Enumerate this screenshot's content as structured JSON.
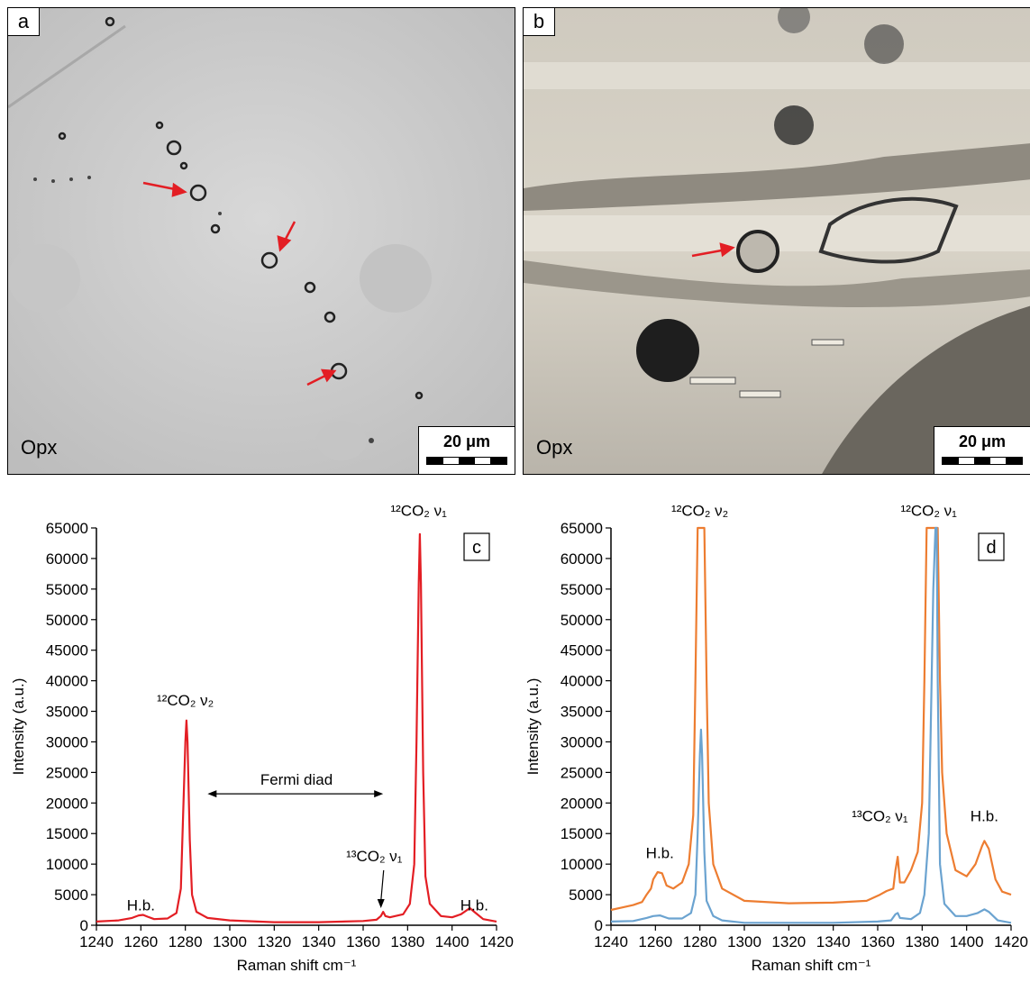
{
  "panel_a": {
    "label": "a",
    "mineral": "Opx",
    "scale": "20 μm"
  },
  "panel_b": {
    "label": "b",
    "mineral": "Opx",
    "scale": "20 μm"
  },
  "chart_data": [
    {
      "panel": "c",
      "type": "line",
      "xlabel": "Raman shift cm⁻¹",
      "ylabel": "Intensity  (a.u.)",
      "xlim": [
        1240,
        1420
      ],
      "ylim": [
        0,
        65000
      ],
      "xticks": [
        1240,
        1260,
        1280,
        1300,
        1320,
        1340,
        1360,
        1380,
        1400,
        1420
      ],
      "yticks": [
        0,
        5000,
        10000,
        15000,
        20000,
        25000,
        30000,
        35000,
        40000,
        45000,
        50000,
        55000,
        60000,
        65000
      ],
      "series": [
        {
          "color": "#e31e24",
          "points": [
            [
              1240,
              600
            ],
            [
              1250,
              800
            ],
            [
              1256,
              1200
            ],
            [
              1259,
              1600
            ],
            [
              1261,
              1700
            ],
            [
              1263,
              1400
            ],
            [
              1266,
              1000
            ],
            [
              1272,
              1100
            ],
            [
              1276,
              2000
            ],
            [
              1278,
              6000
            ],
            [
              1279,
              18000
            ],
            [
              1280,
              30000
            ],
            [
              1280.5,
              33500
            ],
            [
              1281,
              30000
            ],
            [
              1282,
              14000
            ],
            [
              1283,
              5000
            ],
            [
              1285,
              2200
            ],
            [
              1290,
              1200
            ],
            [
              1300,
              800
            ],
            [
              1320,
              500
            ],
            [
              1340,
              500
            ],
            [
              1360,
              700
            ],
            [
              1366,
              900
            ],
            [
              1368,
              1500
            ],
            [
              1369,
              2200
            ],
            [
              1370,
              1500
            ],
            [
              1372,
              1300
            ],
            [
              1378,
              1800
            ],
            [
              1381,
              3500
            ],
            [
              1383,
              10000
            ],
            [
              1384,
              30000
            ],
            [
              1385,
              56000
            ],
            [
              1385.5,
              64000
            ],
            [
              1386,
              56000
            ],
            [
              1387,
              25000
            ],
            [
              1388,
              8000
            ],
            [
              1390,
              3500
            ],
            [
              1395,
              1500
            ],
            [
              1400,
              1300
            ],
            [
              1404,
              1800
            ],
            [
              1408,
              2800
            ],
            [
              1410,
              2200
            ],
            [
              1414,
              1000
            ],
            [
              1420,
              600
            ]
          ]
        }
      ],
      "annotations": [
        {
          "text": "H.b.",
          "x": 1260,
          "y": 2400
        },
        {
          "text": "¹²CO₂ ν₂",
          "x": 1280,
          "y": 36000
        },
        {
          "text": "Fermi diad",
          "x": 1330,
          "y": 23000
        },
        {
          "text": "¹³CO₂ ν₁",
          "x": 1365,
          "y": 10500
        },
        {
          "text": "¹²CO₂ ν₁",
          "x": 1385,
          "y": 67000
        },
        {
          "text": "H.b.",
          "x": 1410,
          "y": 2400
        }
      ],
      "panel_label": "c"
    },
    {
      "panel": "d",
      "type": "line",
      "xlabel": "Raman shift cm⁻¹",
      "ylabel": "Intensity  (a.u.)",
      "xlim": [
        1240,
        1420
      ],
      "ylim": [
        0,
        65000
      ],
      "xticks": [
        1240,
        1260,
        1280,
        1300,
        1320,
        1340,
        1360,
        1380,
        1400,
        1420
      ],
      "yticks": [
        0,
        5000,
        10000,
        15000,
        20000,
        25000,
        30000,
        35000,
        40000,
        45000,
        50000,
        55000,
        60000,
        65000
      ],
      "series": [
        {
          "color": "#ed7d31",
          "points": [
            [
              1240,
              2500
            ],
            [
              1245,
              2900
            ],
            [
              1250,
              3300
            ],
            [
              1254,
              3800
            ],
            [
              1256,
              5000
            ],
            [
              1258,
              6000
            ],
            [
              1259,
              7500
            ],
            [
              1261,
              8700
            ],
            [
              1263,
              8500
            ],
            [
              1265,
              6500
            ],
            [
              1268,
              6000
            ],
            [
              1272,
              7000
            ],
            [
              1275,
              10000
            ],
            [
              1277,
              18000
            ],
            [
              1278,
              40000
            ],
            [
              1279,
              65000
            ],
            [
              1280,
              65000
            ],
            [
              1281,
              65000
            ],
            [
              1282,
              65000
            ],
            [
              1283,
              40000
            ],
            [
              1284,
              20000
            ],
            [
              1286,
              10000
            ],
            [
              1290,
              6000
            ],
            [
              1300,
              4000
            ],
            [
              1320,
              3600
            ],
            [
              1340,
              3700
            ],
            [
              1355,
              4000
            ],
            [
              1361,
              5000
            ],
            [
              1364,
              5600
            ],
            [
              1367,
              6000
            ],
            [
              1368,
              9000
            ],
            [
              1369,
              11200
            ],
            [
              1370,
              7000
            ],
            [
              1372,
              7000
            ],
            [
              1375,
              9000
            ],
            [
              1378,
              12000
            ],
            [
              1380,
              20000
            ],
            [
              1381,
              40000
            ],
            [
              1382,
              65000
            ],
            [
              1383,
              65000
            ],
            [
              1384,
              65000
            ],
            [
              1385,
              65000
            ],
            [
              1386,
              65000
            ],
            [
              1387,
              65000
            ],
            [
              1388,
              40000
            ],
            [
              1389,
              25000
            ],
            [
              1391,
              15000
            ],
            [
              1395,
              9000
            ],
            [
              1400,
              8000
            ],
            [
              1404,
              10000
            ],
            [
              1407,
              13000
            ],
            [
              1408,
              13800
            ],
            [
              1410,
              12500
            ],
            [
              1413,
              7500
            ],
            [
              1416,
              5500
            ],
            [
              1420,
              5000
            ]
          ]
        },
        {
          "color": "#6ba3d0",
          "points": [
            [
              1240,
              600
            ],
            [
              1250,
              700
            ],
            [
              1256,
              1200
            ],
            [
              1259,
              1500
            ],
            [
              1262,
              1600
            ],
            [
              1266,
              1100
            ],
            [
              1272,
              1100
            ],
            [
              1276,
              2000
            ],
            [
              1278,
              5000
            ],
            [
              1279,
              15000
            ],
            [
              1280,
              28000
            ],
            [
              1280.5,
              32000
            ],
            [
              1281,
              28000
            ],
            [
              1282,
              12000
            ],
            [
              1283,
              4000
            ],
            [
              1286,
              1500
            ],
            [
              1290,
              800
            ],
            [
              1300,
              400
            ],
            [
              1340,
              400
            ],
            [
              1360,
              600
            ],
            [
              1366,
              800
            ],
            [
              1368,
              1800
            ],
            [
              1369,
              2000
            ],
            [
              1370,
              1200
            ],
            [
              1375,
              1000
            ],
            [
              1379,
              2000
            ],
            [
              1381,
              5000
            ],
            [
              1383,
              15000
            ],
            [
              1384,
              35000
            ],
            [
              1385,
              55000
            ],
            [
              1386,
              65000
            ],
            [
              1386.5,
              65000
            ],
            [
              1387,
              40000
            ],
            [
              1388,
              10000
            ],
            [
              1390,
              3500
            ],
            [
              1395,
              1500
            ],
            [
              1400,
              1500
            ],
            [
              1405,
              2000
            ],
            [
              1408,
              2600
            ],
            [
              1410,
              2200
            ],
            [
              1414,
              800
            ],
            [
              1420,
              400
            ]
          ]
        }
      ],
      "annotations": [
        {
          "text": "H.b.",
          "x": 1262,
          "y": 11000
        },
        {
          "text": "¹²CO₂ ν₂",
          "x": 1280,
          "y": 67000
        },
        {
          "text": "¹³CO₂ ν₁",
          "x": 1361,
          "y": 17000
        },
        {
          "text": "¹²CO₂ ν₁",
          "x": 1383,
          "y": 67000
        },
        {
          "text": "H.b.",
          "x": 1408,
          "y": 17000
        }
      ],
      "panel_label": "d"
    }
  ]
}
